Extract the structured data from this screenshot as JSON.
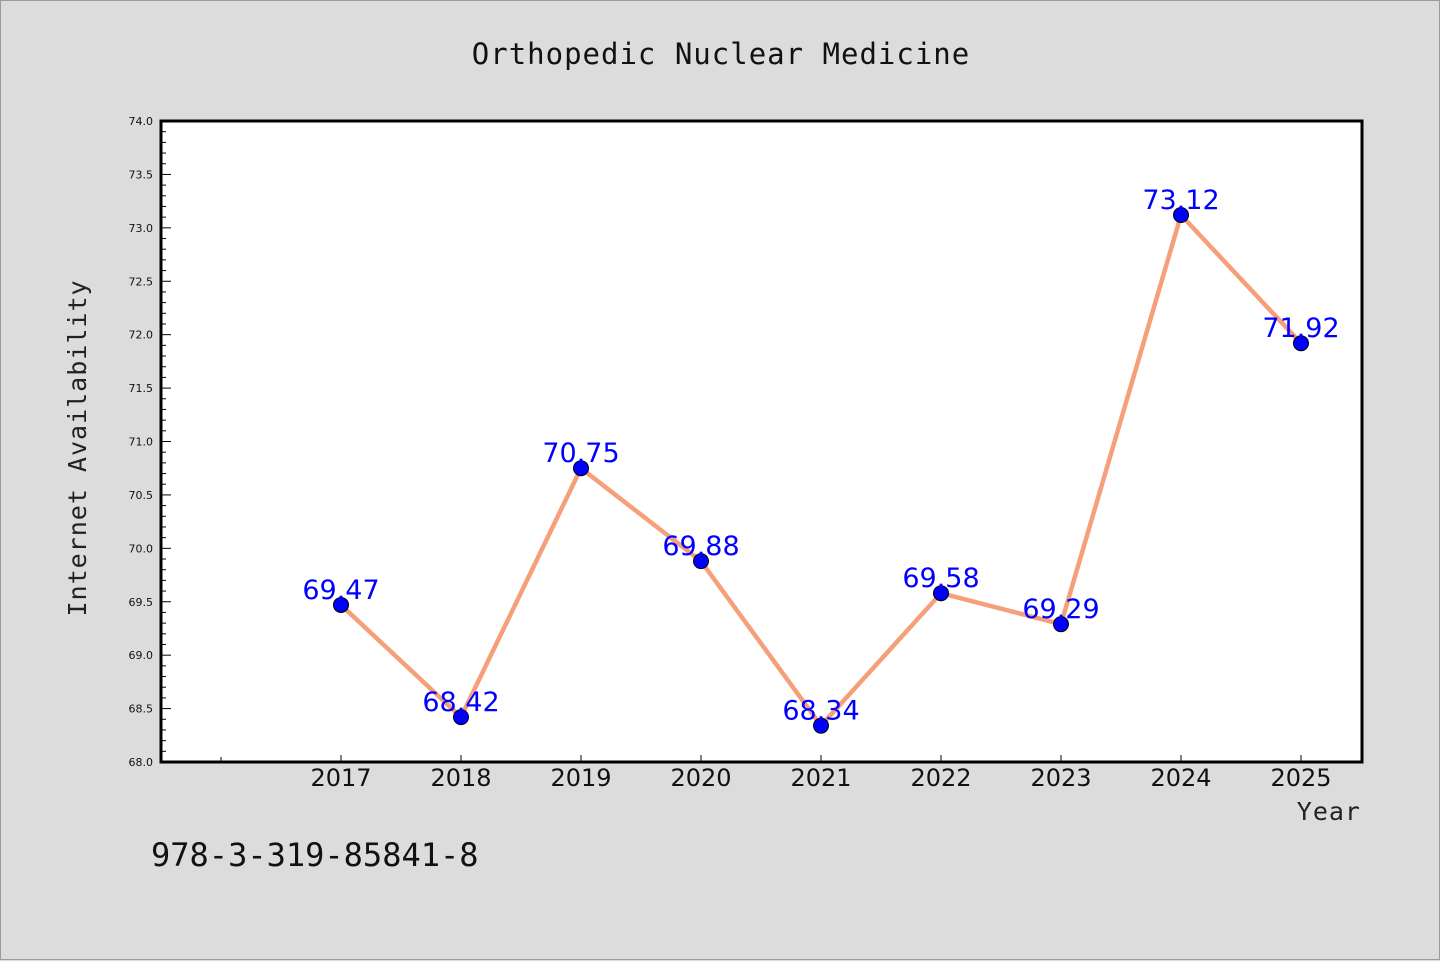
{
  "chart_data": {
    "type": "line",
    "title": "Orthopedic Nuclear Medicine",
    "xlabel": "Year",
    "ylabel": "Internet Availability",
    "categories": [
      "2017",
      "2018",
      "2019",
      "2020",
      "2021",
      "2022",
      "2023",
      "2024",
      "2025"
    ],
    "series": [
      {
        "values": [
          69.47,
          68.42,
          70.75,
          69.88,
          68.34,
          69.58,
          69.29,
          73.12,
          71.92
        ]
      }
    ],
    "ylim": [
      68.0,
      74.0
    ],
    "yticks": [
      "68.0",
      "68.5",
      "69.0",
      "69.5",
      "70.0",
      "70.5",
      "71.0",
      "71.5",
      "72.0",
      "72.5",
      "73.0",
      "73.5",
      "74.0"
    ],
    "data_labels": [
      "69.47",
      "68.42",
      "70.75",
      "69.88",
      "68.34",
      "69.58",
      "69.29",
      "73.12",
      "71.92"
    ],
    "grid": false,
    "line_color": "#f5a07a",
    "marker_color": "#0000ff",
    "label_color": "#0000ff"
  },
  "footer": {
    "isbn": "978-3-319-85841-8"
  }
}
